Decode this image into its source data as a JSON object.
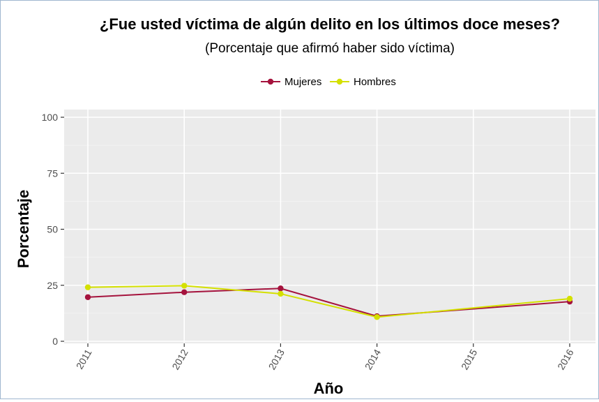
{
  "chart_data": {
    "type": "line",
    "title": "¿Fue usted víctima de algún delito en los últimos doce meses?",
    "subtitle": "(Porcentaje que afirmó haber sido víctima)",
    "xlabel": "Año",
    "ylabel": "Porcentaje",
    "x": [
      "2011",
      "2012",
      "2013",
      "2014",
      "2015",
      "2016"
    ],
    "ylim": [
      0,
      100
    ],
    "yticks": [
      "0",
      "25",
      "50",
      "75",
      "100"
    ],
    "grid": true,
    "legend_position": "top",
    "series": [
      {
        "name": "Mujeres",
        "color": "#a5133d",
        "values": [
          19.7,
          21.9,
          23.6,
          11.2,
          null,
          17.7
        ]
      },
      {
        "name": "Hombres",
        "color": "#d4e000",
        "values": [
          24.1,
          24.8,
          21.2,
          10.8,
          null,
          19.0
        ]
      }
    ]
  },
  "colors": {
    "panel_background": "#ebebeb",
    "grid_major": "#ffffff",
    "grid_minor": "#f4f4f4"
  }
}
